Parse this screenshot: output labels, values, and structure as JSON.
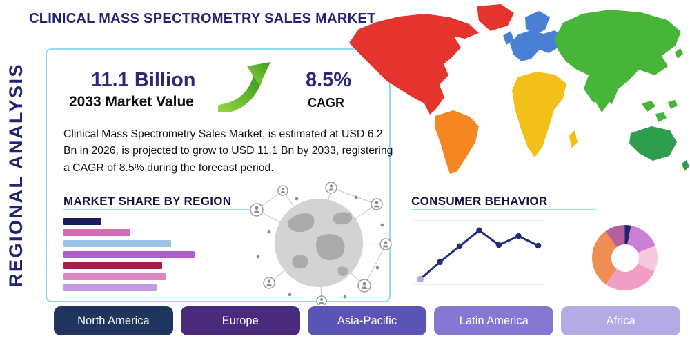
{
  "title": "CLINICAL MASS SPECTROMETRY SALES MARKET",
  "side_label": "REGIONAL ANALYSIS",
  "stats": {
    "market_value": "11.1 Billion",
    "market_value_label": "2033 Market Value",
    "cagr": "8.5%",
    "cagr_label": "CAGR"
  },
  "description": "Clinical Mass Spectrometry Sales Market, is estimated at USD 6.2 Bn in 2026, is projected to grow to USD 11.1 Bn by 2033, registering a CAGR of 8.5% during the forecast period.",
  "section_titles": {
    "market_share": "MARKET SHARE BY REGION",
    "consumer_behavior": "CONSUMER BEHAVIOR"
  },
  "colors": {
    "accent_navy": "#232274",
    "box_border": "#93daec",
    "arrow_green": "#57b32c",
    "underline_blue": "#9edff0"
  },
  "chart_data": [
    {
      "name": "market-share-by-region",
      "type": "bar",
      "orientation": "horizontal",
      "title": "MARKET SHARE BY REGION",
      "xlabel": "",
      "ylabel": "",
      "xlim": [
        0,
        100
      ],
      "values": [
        29,
        51,
        82,
        100,
        75,
        78,
        71
      ],
      "colors": [
        "#1b1b5e",
        "#d36cb4",
        "#9dc3e6",
        "#b05ec7",
        "#a61e4d",
        "#e083c0",
        "#c49ae0"
      ]
    },
    {
      "name": "consumer-behavior",
      "type": "line",
      "title": "CONSUMER BEHAVIOR",
      "x": [
        1,
        2,
        3,
        4,
        5,
        6,
        7
      ],
      "y": [
        8,
        35,
        60,
        85,
        62,
        76,
        61
      ],
      "ylim": [
        0,
        100
      ],
      "grid": "horizontal",
      "line_color": "#232a7a",
      "first_point_color": "#b9a7e6"
    },
    {
      "name": "regional-donut",
      "type": "pie",
      "donut": true,
      "slices": [
        {
          "value": 3,
          "color": "#23256d"
        },
        {
          "value": 16,
          "color": "#cb7fd9"
        },
        {
          "value": 13,
          "color": "#f6cade"
        },
        {
          "value": 28,
          "color": "#f19ec6"
        },
        {
          "value": 30,
          "color": "#ef8e53"
        },
        {
          "value": 10,
          "color": "#b2609e"
        }
      ]
    }
  ],
  "map_colors": {
    "north_america": "#e5332d",
    "greenland": "#e5332d",
    "south_america": "#f58722",
    "europe": "#4b7fd6",
    "africa": "#f3c019",
    "asia": "#47b53a",
    "australia": "#2e9e4c"
  },
  "region_buttons": [
    {
      "label": "North America",
      "color": "#1f355e"
    },
    {
      "label": "Europe",
      "color": "#4a2a7c"
    },
    {
      "label": "Asia-Pacific",
      "color": "#5a55b5"
    },
    {
      "label": "Latin America",
      "color": "#8678d2"
    },
    {
      "label": "Africa",
      "color": "#b5abe4"
    }
  ]
}
